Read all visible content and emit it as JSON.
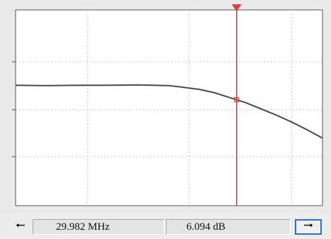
{
  "status": {
    "frequency": "29.982 MHz",
    "gain": "6.094 dB"
  },
  "icons": {
    "left": "arrow-left-icon",
    "right": "arrow-right-icon"
  },
  "colors": {
    "trace": "#4a4a4a",
    "cursor": "#e23b3b",
    "grid": "#c4c4c4",
    "accent": "#2a6fd6"
  },
  "trace": [
    [
      0.0,
      0.0
    ],
    [
      0.1,
      -0.1
    ],
    [
      0.2,
      0.0
    ],
    [
      0.3,
      0.0
    ],
    [
      0.4,
      0.1
    ],
    [
      0.5,
      -0.1
    ],
    [
      0.55,
      -0.6
    ],
    [
      0.6,
      -1.2
    ],
    [
      0.65,
      -2.2
    ],
    [
      0.7,
      -3.6
    ],
    [
      0.75,
      -5.0
    ],
    [
      0.8,
      -6.8
    ],
    [
      0.85,
      -8.6
    ],
    [
      0.9,
      -10.6
    ],
    [
      0.95,
      -12.8
    ],
    [
      1.0,
      -15.2
    ]
  ],
  "cursor_x": 0.72
}
